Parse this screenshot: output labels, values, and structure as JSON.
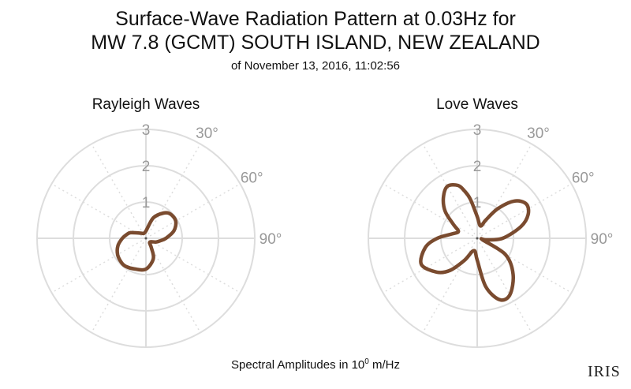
{
  "title": {
    "line1": "Surface-Wave Radiation Pattern at 0.03Hz for",
    "line2": "MW 7.8 (GCMT) SOUTH ISLAND, NEW ZEALAND",
    "line3": "of November 13, 2016, 11:02:56"
  },
  "footer": {
    "prefix": "Spectral Amplitudes in 10",
    "exponent": "0",
    "suffix": " m/Hz"
  },
  "logo": {
    "text": "IRIS"
  },
  "colors": {
    "pattern": "#7a4b2f",
    "grid": "#dddddd",
    "tick_text": "#999999"
  },
  "chart_data": [
    {
      "type": "polar-line",
      "title": "Rayleigh Waves",
      "radial_ticks": [
        "1",
        "2",
        "3"
      ],
      "rlim": [
        0,
        3
      ],
      "angle_ticks": [
        "30°",
        "60°",
        "90°"
      ],
      "theta_deg": [
        0,
        20,
        35,
        45,
        60,
        75,
        90,
        100,
        110,
        135,
        150,
        160,
        180,
        200,
        215,
        225,
        240,
        255,
        270,
        280,
        290,
        315,
        330,
        340,
        360
      ],
      "r": [
        0.2,
        0.6,
        0.85,
        0.95,
        0.95,
        0.8,
        0.55,
        0.4,
        0.3,
        0.15,
        0.3,
        0.6,
        0.85,
        0.9,
        0.95,
        0.95,
        0.9,
        0.8,
        0.65,
        0.55,
        0.45,
        0.2,
        0.15,
        0.15,
        0.2
      ]
    },
    {
      "type": "polar-line",
      "title": "Love Waves",
      "radial_ticks": [
        "1",
        "2",
        "3"
      ],
      "rlim": [
        0,
        3
      ],
      "angle_ticks": [
        "30°",
        "60°",
        "90°"
      ],
      "theta_deg": [
        0,
        15,
        25,
        35,
        45,
        55,
        65,
        75,
        90,
        100,
        105,
        120,
        135,
        150,
        160,
        170,
        180,
        195,
        210,
        220,
        230,
        245,
        260,
        270,
        280,
        290,
        300,
        310,
        320,
        330,
        340,
        345,
        350,
        360
      ],
      "r": [
        0.6,
        0.35,
        0.55,
        1.0,
        1.45,
        1.65,
        1.55,
        1.25,
        0.7,
        0.25,
        0.15,
        0.9,
        1.4,
        1.8,
        1.8,
        1.35,
        0.6,
        0.35,
        0.7,
        1.15,
        1.45,
        1.7,
        1.45,
        1.1,
        0.7,
        0.55,
        0.75,
        1.15,
        1.45,
        1.65,
        1.55,
        1.35,
        1.1,
        0.6
      ]
    }
  ]
}
